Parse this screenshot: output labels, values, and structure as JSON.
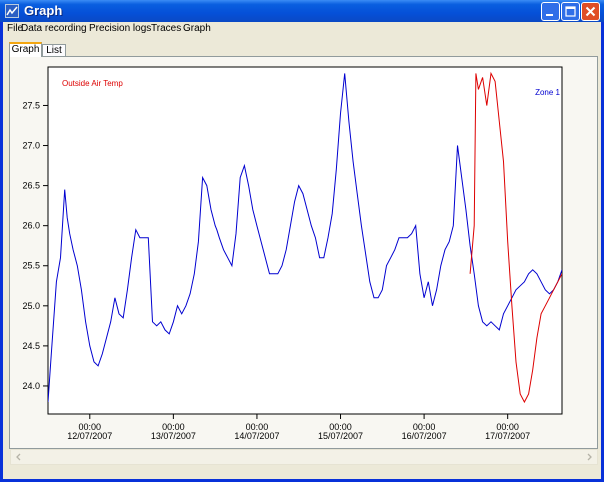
{
  "window": {
    "title": "Graph"
  },
  "menu": [
    "File",
    "Data recording",
    "Precision logs",
    "Traces",
    "Graph"
  ],
  "tabs": [
    {
      "label": "Graph",
      "active": true
    },
    {
      "label": "List",
      "active": false
    }
  ],
  "colors": {
    "zone1": "#0000d0",
    "outside_air": "#dd0000"
  },
  "chart_data": {
    "type": "line",
    "title": "",
    "xlabel": "",
    "ylabel": "",
    "ylim": [
      23.65,
      27.98
    ],
    "yticks": [
      "24.0",
      "24.5",
      "25.0",
      "25.5",
      "26.0",
      "26.5",
      "27.0",
      "27.5"
    ],
    "xlim": [
      -0.5,
      5.65
    ],
    "xticks": [
      {
        "time": "00:00",
        "date": "12/07/2007"
      },
      {
        "time": "00:00",
        "date": "13/07/2007"
      },
      {
        "time": "00:00",
        "date": "14/07/2007"
      },
      {
        "time": "00:00",
        "date": "15/07/2007"
      },
      {
        "time": "00:00",
        "date": "16/07/2007"
      },
      {
        "time": "00:00",
        "date": "17/07/2007"
      }
    ],
    "x_units": "days after 12/07/2007 00:00",
    "series": [
      {
        "name": "Zone 1",
        "color": "#0000d0",
        "x": [
          -0.5,
          -0.46,
          -0.4,
          -0.35,
          -0.3,
          -0.27,
          -0.24,
          -0.2,
          -0.15,
          -0.1,
          -0.05,
          0.0,
          0.05,
          0.1,
          0.15,
          0.2,
          0.25,
          0.3,
          0.35,
          0.4,
          0.45,
          0.5,
          0.55,
          0.6,
          0.65,
          0.7,
          0.75,
          0.8,
          0.85,
          0.9,
          0.95,
          1.0,
          1.05,
          1.1,
          1.15,
          1.2,
          1.25,
          1.3,
          1.35,
          1.4,
          1.45,
          1.5,
          1.52,
          1.55,
          1.6,
          1.65,
          1.7,
          1.75,
          1.8,
          1.85,
          1.9,
          1.95,
          2.0,
          2.05,
          2.1,
          2.15,
          2.2,
          2.25,
          2.3,
          2.35,
          2.4,
          2.45,
          2.5,
          2.55,
          2.6,
          2.65,
          2.7,
          2.75,
          2.8,
          2.85,
          2.9,
          2.95,
          3.0,
          3.05,
          3.1,
          3.15,
          3.2,
          3.25,
          3.3,
          3.35,
          3.4,
          3.45,
          3.5,
          3.55,
          3.6,
          3.65,
          3.7,
          3.75,
          3.8,
          3.85,
          3.9,
          3.95,
          4.0,
          4.05,
          4.1,
          4.15,
          4.2,
          4.25,
          4.3,
          4.35,
          4.4,
          4.45,
          4.5,
          4.55,
          4.6,
          4.65,
          4.7,
          4.75,
          4.8,
          4.85,
          4.9,
          4.95,
          5.0,
          5.05,
          5.1,
          5.15,
          5.2,
          5.25,
          5.3,
          5.35,
          5.4,
          5.45,
          5.5,
          5.55,
          5.6,
          5.65
        ],
        "y": [
          23.8,
          24.4,
          25.3,
          25.6,
          26.45,
          26.1,
          25.9,
          25.7,
          25.5,
          25.2,
          24.8,
          24.5,
          24.3,
          24.25,
          24.4,
          24.6,
          24.8,
          25.1,
          24.9,
          24.85,
          25.2,
          25.6,
          25.95,
          25.85,
          25.85,
          25.85,
          24.8,
          24.75,
          24.8,
          24.7,
          24.65,
          24.8,
          25.0,
          24.9,
          25.0,
          25.15,
          25.4,
          25.8,
          26.6,
          26.5,
          26.2,
          26.0,
          25.95,
          25.85,
          25.7,
          25.6,
          25.5,
          25.9,
          26.6,
          26.75,
          26.5,
          26.2,
          26.0,
          25.8,
          25.6,
          25.4,
          25.4,
          25.4,
          25.5,
          25.7,
          26.0,
          26.3,
          26.5,
          26.4,
          26.2,
          26.0,
          25.85,
          25.6,
          25.6,
          25.85,
          26.15,
          26.7,
          27.4,
          27.9,
          27.3,
          26.8,
          26.4,
          26.0,
          25.65,
          25.3,
          25.1,
          25.1,
          25.2,
          25.5,
          25.6,
          25.7,
          25.85,
          25.85,
          25.85,
          25.9,
          26.0,
          25.4,
          25.1,
          25.3,
          25.0,
          25.2,
          25.5,
          25.7,
          25.8,
          26.0,
          27.0,
          26.6,
          26.2,
          25.75,
          25.4,
          25.0,
          24.8,
          24.75,
          24.8,
          24.75,
          24.7,
          24.9,
          25.0,
          25.1,
          25.2,
          25.25,
          25.3,
          25.4,
          25.45,
          25.4,
          25.3,
          25.2,
          25.15,
          25.2,
          25.3,
          25.45
        ],
        "x_offset": 0
      },
      {
        "name": "Outside Air Temp",
        "color": "#dd0000",
        "x": [
          4.55,
          4.6,
          4.62,
          4.65,
          4.7,
          4.75,
          4.8,
          4.85,
          4.9,
          4.95,
          5.0,
          5.05,
          5.1,
          5.15,
          5.2,
          5.25,
          5.3,
          5.35,
          5.4,
          5.45,
          5.5,
          5.55,
          5.6,
          5.65
        ],
        "y": [
          25.4,
          26.0,
          27.9,
          27.7,
          27.85,
          27.5,
          27.9,
          27.8,
          27.3,
          26.8,
          25.8,
          25.0,
          24.3,
          23.9,
          23.8,
          23.9,
          24.2,
          24.6,
          24.9,
          25.0,
          25.1,
          25.2,
          25.3,
          25.4
        ]
      }
    ],
    "legend": [
      "Outside Air Temp",
      "Zone 1"
    ],
    "grid": false
  },
  "scrollbar": {
    "position": 0
  }
}
